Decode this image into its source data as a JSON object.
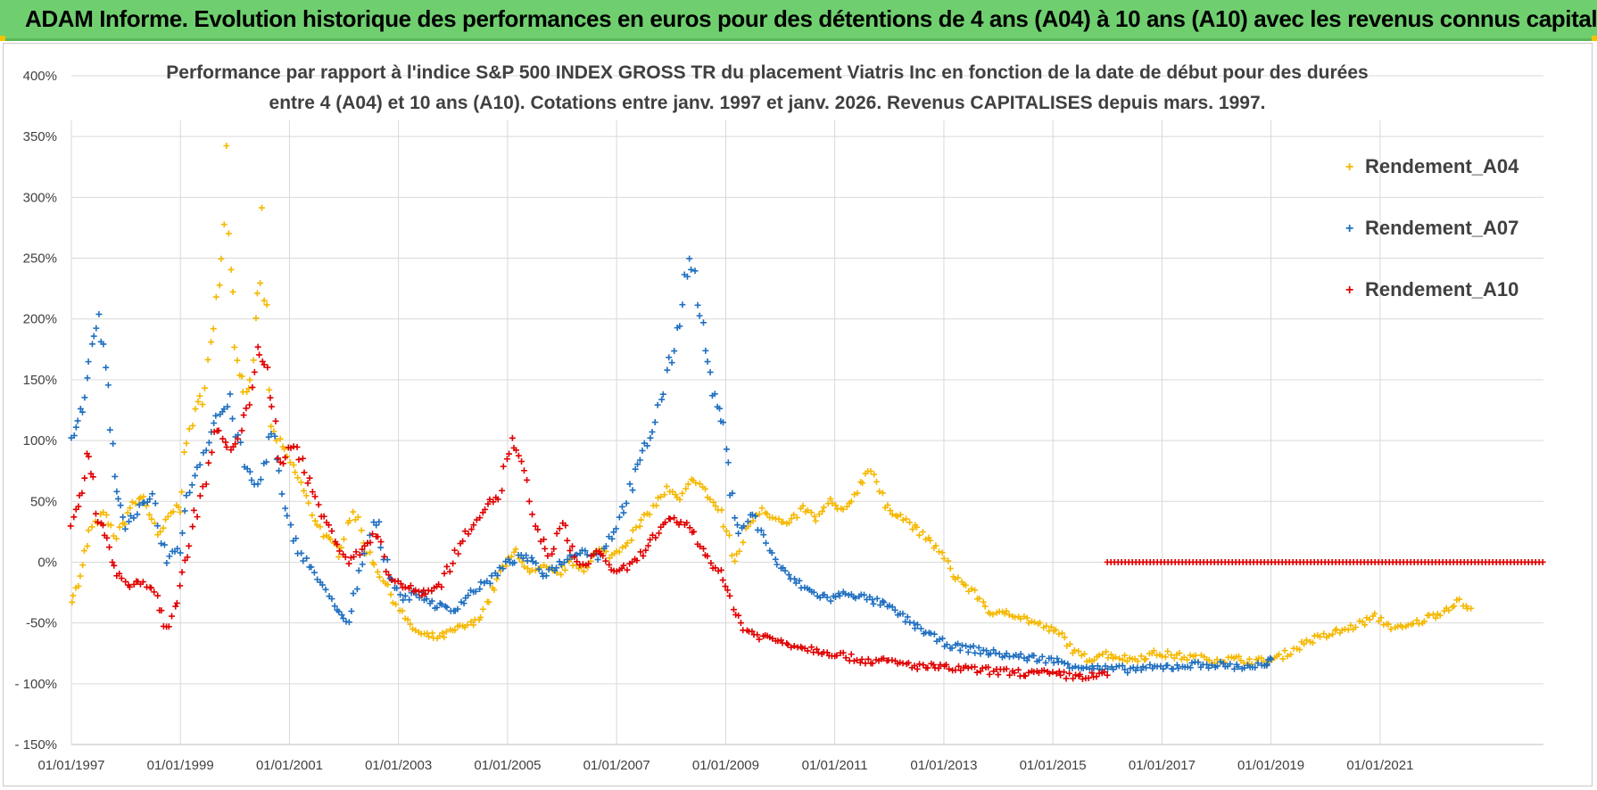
{
  "banner": {
    "title": "ADAM Informe. Evolution historique des performances en euros pour des détentions de 4 ans (A04) à 10 ans (A10) avec les revenus connus capitalisés",
    "bg_color": "#6fcf6f",
    "accent_color": "#f2c200"
  },
  "chart_data": {
    "type": "scatter",
    "title_line1": "Performance par rapport à l'indice S&P 500 INDEX GROSS TR  du placement Viatris Inc en fonction de la date de début pour des durées",
    "title_line2": "entre 4 (A04) et 10 ans (A10). Cotations entre janv. 1997 et janv. 2026. Revenus CAPITALISES depuis mars. 1997.",
    "xlabel": "",
    "ylabel": "",
    "xlim": [
      "1997-01-01",
      "2023-12-31"
    ],
    "ylim": [
      -150,
      400
    ],
    "y_ticks": [
      {
        "value": 400,
        "label": "400%"
      },
      {
        "value": 350,
        "label": "350%"
      },
      {
        "value": 300,
        "label": "300%"
      },
      {
        "value": 250,
        "label": "250%"
      },
      {
        "value": 200,
        "label": "200%"
      },
      {
        "value": 150,
        "label": "150%"
      },
      {
        "value": 100,
        "label": "100%"
      },
      {
        "value": 50,
        "label": "50%"
      },
      {
        "value": 0,
        "label": "0%"
      },
      {
        "value": -50,
        "label": "-50%"
      },
      {
        "value": -100,
        "label": "- 100%"
      },
      {
        "value": -150,
        "label": "- 150%"
      }
    ],
    "x_ticks": [
      {
        "date": "1997-01-01",
        "label": "01/01/1997"
      },
      {
        "date": "1999-01-01",
        "label": "01/01/1999"
      },
      {
        "date": "2001-01-01",
        "label": "01/01/2001"
      },
      {
        "date": "2003-01-01",
        "label": "01/01/2003"
      },
      {
        "date": "2005-01-01",
        "label": "01/01/2005"
      },
      {
        "date": "2007-01-01",
        "label": "01/01/2007"
      },
      {
        "date": "2009-01-01",
        "label": "01/01/2009"
      },
      {
        "date": "2011-01-01",
        "label": "01/01/2011"
      },
      {
        "date": "2013-01-01",
        "label": "01/01/2013"
      },
      {
        "date": "2015-01-01",
        "label": "01/01/2015"
      },
      {
        "date": "2017-01-01",
        "label": "01/01/2017"
      },
      {
        "date": "2019-01-01",
        "label": "01/01/2019"
      },
      {
        "date": "2021-01-01",
        "label": "01/01/2021"
      }
    ],
    "grid": true,
    "legend_position": "top-right",
    "series": [
      {
        "name": "Rendement_A04",
        "color": "#f5b800",
        "points": [
          [
            "1997-01-01",
            -30
          ],
          [
            "1997-03-01",
            -15
          ],
          [
            "1997-05-01",
            25
          ],
          [
            "1997-08-01",
            40
          ],
          [
            "1997-11-01",
            20
          ],
          [
            "1998-02-01",
            45
          ],
          [
            "1998-05-01",
            55
          ],
          [
            "1998-08-01",
            20
          ],
          [
            "1998-11-01",
            40
          ],
          [
            "1999-01-01",
            50
          ],
          [
            "1999-03-01",
            110
          ],
          [
            "1999-06-01",
            140
          ],
          [
            "1999-09-01",
            200
          ],
          [
            "1999-11-01",
            335
          ],
          [
            "2000-01-01",
            180
          ],
          [
            "2000-03-01",
            140
          ],
          [
            "2000-05-01",
            150
          ],
          [
            "2000-07-01",
            270
          ],
          [
            "2000-09-01",
            110
          ],
          [
            "2000-12-01",
            90
          ],
          [
            "2001-03-01",
            70
          ],
          [
            "2001-06-01",
            40
          ],
          [
            "2001-09-01",
            20
          ],
          [
            "2001-12-01",
            10
          ],
          [
            "2002-03-01",
            45
          ],
          [
            "2002-06-01",
            10
          ],
          [
            "2002-09-01",
            -10
          ],
          [
            "2002-12-01",
            -30
          ],
          [
            "2003-03-01",
            -50
          ],
          [
            "2003-06-01",
            -60
          ],
          [
            "2003-10-01",
            -62
          ],
          [
            "2004-02-01",
            -55
          ],
          [
            "2004-06-01",
            -50
          ],
          [
            "2004-09-01",
            -30
          ],
          [
            "2004-12-01",
            -5
          ],
          [
            "2005-03-01",
            10
          ],
          [
            "2005-06-01",
            -10
          ],
          [
            "2005-09-01",
            -5
          ],
          [
            "2005-12-01",
            -10
          ],
          [
            "2006-03-01",
            0
          ],
          [
            "2006-06-01",
            -5
          ],
          [
            "2006-09-01",
            10
          ],
          [
            "2006-12-01",
            5
          ],
          [
            "2007-03-01",
            15
          ],
          [
            "2007-06-01",
            30
          ],
          [
            "2007-09-01",
            45
          ],
          [
            "2007-12-01",
            60
          ],
          [
            "2008-03-01",
            50
          ],
          [
            "2008-06-01",
            70
          ],
          [
            "2008-09-01",
            55
          ],
          [
            "2008-12-01",
            40
          ],
          [
            "2009-03-01",
            0
          ],
          [
            "2009-06-01",
            30
          ],
          [
            "2009-09-01",
            45
          ],
          [
            "2009-12-01",
            35
          ],
          [
            "2010-03-01",
            30
          ],
          [
            "2010-06-01",
            45
          ],
          [
            "2010-09-01",
            35
          ],
          [
            "2010-12-01",
            50
          ],
          [
            "2011-03-01",
            40
          ],
          [
            "2011-06-01",
            60
          ],
          [
            "2011-09-01",
            80
          ],
          [
            "2011-12-01",
            45
          ],
          [
            "2012-03-01",
            40
          ],
          [
            "2012-06-01",
            30
          ],
          [
            "2012-09-01",
            20
          ],
          [
            "2012-12-01",
            10
          ],
          [
            "2013-03-01",
            -10
          ],
          [
            "2013-06-01",
            -20
          ],
          [
            "2013-09-01",
            -30
          ],
          [
            "2013-12-01",
            -45
          ],
          [
            "2014-03-01",
            -40
          ],
          [
            "2014-06-01",
            -45
          ],
          [
            "2014-09-01",
            -50
          ],
          [
            "2014-12-01",
            -55
          ],
          [
            "2015-03-01",
            -60
          ],
          [
            "2015-06-01",
            -75
          ],
          [
            "2015-09-01",
            -80
          ],
          [
            "2015-12-01",
            -75
          ],
          [
            "2016-06-01",
            -80
          ],
          [
            "2016-12-01",
            -75
          ],
          [
            "2017-06-01",
            -78
          ],
          [
            "2017-12-01",
            -80
          ],
          [
            "2018-06-01",
            -80
          ],
          [
            "2018-12-01",
            -82
          ],
          [
            "2019-03-01",
            -78
          ],
          [
            "2019-06-01",
            -72
          ],
          [
            "2019-09-01",
            -65
          ],
          [
            "2019-12-01",
            -62
          ],
          [
            "2020-03-01",
            -58
          ],
          [
            "2020-06-01",
            -55
          ],
          [
            "2020-09-01",
            -50
          ],
          [
            "2020-12-01",
            -45
          ],
          [
            "2021-03-01",
            -52
          ],
          [
            "2021-06-01",
            -55
          ],
          [
            "2021-09-01",
            -50
          ],
          [
            "2021-12-01",
            -45
          ],
          [
            "2022-03-01",
            -40
          ],
          [
            "2022-06-01",
            -32
          ],
          [
            "2022-09-01",
            -38
          ]
        ]
      },
      {
        "name": "Rendement_A07",
        "color": "#1f6fc0",
        "points": [
          [
            "1997-01-01",
            100
          ],
          [
            "1997-03-01",
            120
          ],
          [
            "1997-05-01",
            165
          ],
          [
            "1997-07-01",
            200
          ],
          [
            "1997-09-01",
            140
          ],
          [
            "1997-11-01",
            60
          ],
          [
            "1998-01-01",
            30
          ],
          [
            "1998-04-01",
            45
          ],
          [
            "1998-07-01",
            50
          ],
          [
            "1998-10-01",
            0
          ],
          [
            "1999-01-01",
            15
          ],
          [
            "1999-03-01",
            60
          ],
          [
            "1999-06-01",
            90
          ],
          [
            "1999-09-01",
            120
          ],
          [
            "1999-12-01",
            130
          ],
          [
            "2000-03-01",
            80
          ],
          [
            "2000-06-01",
            60
          ],
          [
            "2000-09-01",
            110
          ],
          [
            "2000-12-01",
            40
          ],
          [
            "2001-03-01",
            10
          ],
          [
            "2001-06-01",
            -5
          ],
          [
            "2001-09-01",
            -25
          ],
          [
            "2001-12-01",
            -40
          ],
          [
            "2002-02-01",
            -55
          ],
          [
            "2002-05-01",
            0
          ],
          [
            "2002-08-01",
            35
          ],
          [
            "2002-11-01",
            -10
          ],
          [
            "2003-02-01",
            -30
          ],
          [
            "2003-05-01",
            -25
          ],
          [
            "2003-09-01",
            -35
          ],
          [
            "2004-01-01",
            -40
          ],
          [
            "2004-05-01",
            -25
          ],
          [
            "2004-09-01",
            -15
          ],
          [
            "2005-01-01",
            0
          ],
          [
            "2005-05-01",
            5
          ],
          [
            "2005-09-01",
            -10
          ],
          [
            "2006-01-01",
            0
          ],
          [
            "2006-05-01",
            10
          ],
          [
            "2006-09-01",
            5
          ],
          [
            "2007-01-01",
            30
          ],
          [
            "2007-05-01",
            70
          ],
          [
            "2007-09-01",
            110
          ],
          [
            "2007-12-01",
            150
          ],
          [
            "2008-03-01",
            200
          ],
          [
            "2008-05-01",
            260
          ],
          [
            "2008-08-01",
            190
          ],
          [
            "2008-10-01",
            140
          ],
          [
            "2008-12-01",
            120
          ],
          [
            "2009-02-01",
            60
          ],
          [
            "2009-04-01",
            25
          ],
          [
            "2009-07-01",
            40
          ],
          [
            "2009-10-01",
            15
          ],
          [
            "2010-01-01",
            -5
          ],
          [
            "2010-04-01",
            -15
          ],
          [
            "2010-08-01",
            -25
          ],
          [
            "2010-12-01",
            -30
          ],
          [
            "2011-04-01",
            -25
          ],
          [
            "2011-08-01",
            -30
          ],
          [
            "2011-12-01",
            -35
          ],
          [
            "2012-04-01",
            -45
          ],
          [
            "2012-08-01",
            -55
          ],
          [
            "2012-12-01",
            -65
          ],
          [
            "2013-04-01",
            -70
          ],
          [
            "2013-08-01",
            -72
          ],
          [
            "2013-12-01",
            -75
          ],
          [
            "2014-06-01",
            -78
          ],
          [
            "2014-12-01",
            -80
          ],
          [
            "2015-06-01",
            -85
          ],
          [
            "2015-12-01",
            -88
          ],
          [
            "2016-06-01",
            -88
          ],
          [
            "2016-12-01",
            -87
          ],
          [
            "2017-06-01",
            -85
          ],
          [
            "2017-12-01",
            -84
          ],
          [
            "2018-06-01",
            -86
          ],
          [
            "2018-12-01",
            -85
          ],
          [
            "2019-01-01",
            -80
          ]
        ]
      },
      {
        "name": "Rendement_A10",
        "color": "#e00000",
        "points": [
          [
            "1997-01-01",
            30
          ],
          [
            "1997-03-01",
            50
          ],
          [
            "1997-05-01",
            95
          ],
          [
            "1997-07-01",
            35
          ],
          [
            "1997-09-01",
            20
          ],
          [
            "1997-11-01",
            -10
          ],
          [
            "1998-02-01",
            -20
          ],
          [
            "1998-05-01",
            -15
          ],
          [
            "1998-08-01",
            -30
          ],
          [
            "1998-10-01",
            -55
          ],
          [
            "1999-01-01",
            -25
          ],
          [
            "1999-03-01",
            20
          ],
          [
            "1999-06-01",
            60
          ],
          [
            "1999-09-01",
            110
          ],
          [
            "1999-12-01",
            90
          ],
          [
            "2000-03-01",
            110
          ],
          [
            "2000-06-01",
            180
          ],
          [
            "2000-08-01",
            150
          ],
          [
            "2000-11-01",
            80
          ],
          [
            "2001-02-01",
            100
          ],
          [
            "2001-05-01",
            70
          ],
          [
            "2001-08-01",
            40
          ],
          [
            "2001-11-01",
            20
          ],
          [
            "2002-02-01",
            0
          ],
          [
            "2002-05-01",
            10
          ],
          [
            "2002-08-01",
            25
          ],
          [
            "2002-11-01",
            -10
          ],
          [
            "2003-02-01",
            -20
          ],
          [
            "2003-06-01",
            -25
          ],
          [
            "2003-10-01",
            -20
          ],
          [
            "2004-02-01",
            10
          ],
          [
            "2004-05-01",
            30
          ],
          [
            "2004-08-01",
            45
          ],
          [
            "2004-11-01",
            55
          ],
          [
            "2005-02-01",
            100
          ],
          [
            "2005-04-01",
            80
          ],
          [
            "2005-07-01",
            30
          ],
          [
            "2005-10-01",
            5
          ],
          [
            "2006-01-01",
            30
          ],
          [
            "2006-05-01",
            -5
          ],
          [
            "2006-09-01",
            10
          ],
          [
            "2007-01-01",
            -10
          ],
          [
            "2007-05-01",
            0
          ],
          [
            "2007-09-01",
            20
          ],
          [
            "2008-01-01",
            35
          ],
          [
            "2008-05-01",
            30
          ],
          [
            "2008-08-01",
            10
          ],
          [
            "2008-12-01",
            -10
          ],
          [
            "2009-02-01",
            -30
          ],
          [
            "2009-05-01",
            -55
          ],
          [
            "2009-08-01",
            -60
          ],
          [
            "2010-01-01",
            -65
          ],
          [
            "2010-06-01",
            -70
          ],
          [
            "2011-01-01",
            -75
          ],
          [
            "2011-06-01",
            -80
          ],
          [
            "2012-01-01",
            -82
          ],
          [
            "2012-06-01",
            -85
          ],
          [
            "2013-01-01",
            -87
          ],
          [
            "2013-06-01",
            -88
          ],
          [
            "2014-01-01",
            -90
          ],
          [
            "2014-06-01",
            -91
          ],
          [
            "2015-01-01",
            -92
          ],
          [
            "2015-06-01",
            -94
          ],
          [
            "2016-01-01",
            -93
          ]
        ],
        "flat_segment": {
          "from": "2016-01-01",
          "to": "2023-12-31",
          "value": 0
        }
      }
    ]
  }
}
